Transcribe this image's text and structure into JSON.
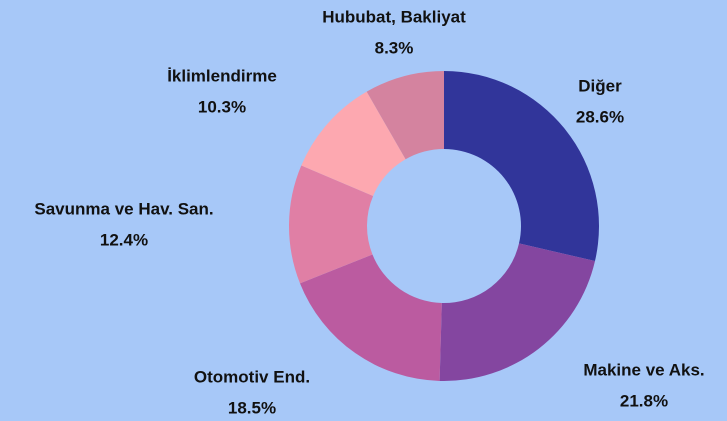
{
  "chart_data": {
    "type": "donut",
    "categories": [
      "Diğer",
      "Makine ve Aks.",
      "Otomotiv End.",
      "Savunma ve Hav. San.",
      "İklimlendirme",
      "Hububat, Bakliyat"
    ],
    "values": [
      28.6,
      21.8,
      18.5,
      12.4,
      10.3,
      8.3
    ],
    "value_labels": [
      "28.6%",
      "21.8%",
      "18.5%",
      "12.4%",
      "10.3%",
      "8.3%"
    ],
    "colors": [
      "#31359a",
      "#8446a0",
      "#bb5ba0",
      "#e07fa5",
      "#fda8b0",
      "#d4839f"
    ]
  }
}
